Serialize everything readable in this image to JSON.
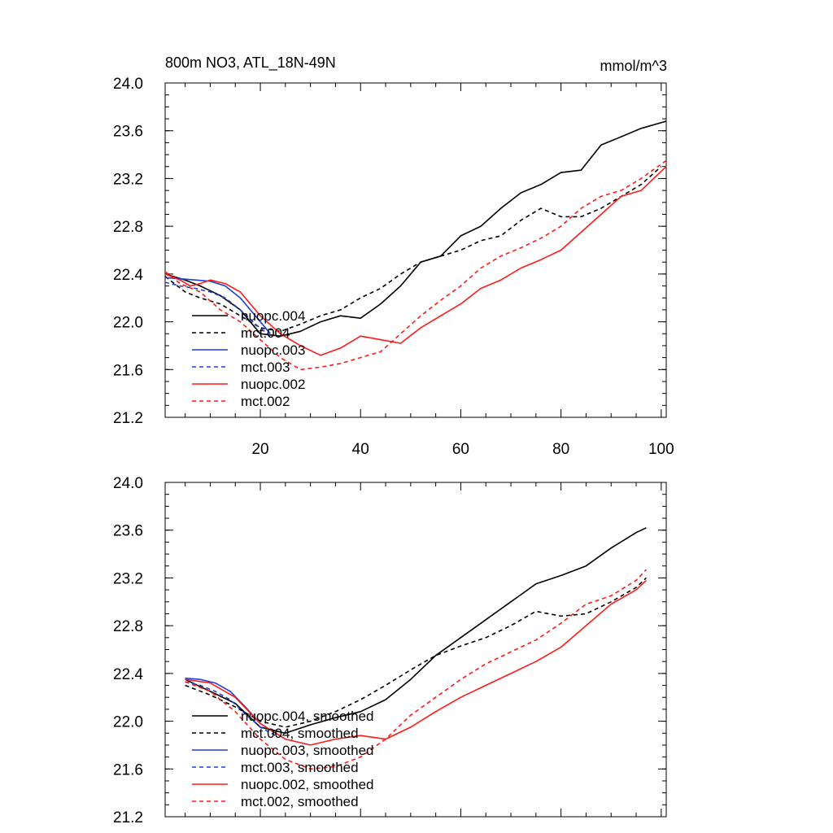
{
  "chart_data": [
    {
      "type": "line",
      "title": "800m NO3, ATL_18N-49N",
      "units": "mmol/m^3",
      "xlabel": "",
      "ylabel": "",
      "xlim": [
        1,
        101
      ],
      "ylim": [
        21.2,
        24.0
      ],
      "x_ticks": [
        20,
        40,
        60,
        80,
        100
      ],
      "x_tick_labels": [
        "20",
        "40",
        "60",
        "80",
        "100"
      ],
      "y_ticks": [
        21.2,
        21.6,
        22.0,
        22.4,
        22.8,
        23.2,
        23.6,
        24.0
      ],
      "y_tick_labels": [
        "21.2",
        "21.6",
        "22.0",
        "22.4",
        "22.8",
        "23.2",
        "23.6",
        "24.0"
      ],
      "legend_position": "bottom-left",
      "series": [
        {
          "name": "nuopc.004",
          "color": "#000000",
          "dashed": false,
          "x": [
            1,
            5,
            8,
            12,
            16,
            20,
            24,
            28,
            32,
            36,
            40,
            44,
            48,
            52,
            56,
            60,
            64,
            68,
            72,
            76,
            80,
            84,
            88,
            92,
            96,
            101
          ],
          "y": [
            22.4,
            22.35,
            22.3,
            22.22,
            22.1,
            21.9,
            21.88,
            21.92,
            22.0,
            22.05,
            22.03,
            22.15,
            22.3,
            22.5,
            22.55,
            22.72,
            22.8,
            22.95,
            23.08,
            23.15,
            23.25,
            23.27,
            23.48,
            23.55,
            23.62,
            23.68
          ]
        },
        {
          "name": "mct.004",
          "color": "#000000",
          "dashed": true,
          "x": [
            1,
            5,
            8,
            12,
            16,
            20,
            24,
            28,
            32,
            36,
            40,
            44,
            48,
            52,
            56,
            60,
            64,
            68,
            72,
            76,
            80,
            84,
            88,
            92,
            96,
            100
          ],
          "y": [
            22.38,
            22.25,
            22.2,
            22.15,
            22.05,
            21.95,
            21.92,
            21.98,
            22.05,
            22.1,
            22.2,
            22.28,
            22.4,
            22.5,
            22.55,
            22.6,
            22.68,
            22.72,
            22.85,
            22.95,
            22.88,
            22.88,
            22.95,
            23.05,
            23.15,
            23.3
          ]
        },
        {
          "name": "nuopc.003",
          "color": "#1f3fd8",
          "dashed": false,
          "x": [
            1,
            4,
            7,
            10,
            13,
            16,
            19,
            22
          ],
          "y": [
            22.37,
            22.36,
            22.35,
            22.34,
            22.3,
            22.2,
            22.05,
            21.9
          ]
        },
        {
          "name": "mct.003",
          "color": "#1f3fd8",
          "dashed": true,
          "x": [
            1,
            4,
            7,
            10,
            13,
            16,
            19,
            22
          ],
          "y": [
            22.33,
            22.3,
            22.28,
            22.25,
            22.2,
            22.1,
            21.98,
            21.88
          ]
        },
        {
          "name": "nuopc.002",
          "color": "#ff1a1a",
          "dashed": false,
          "x": [
            1,
            4,
            6,
            8,
            10,
            13,
            16,
            20,
            24,
            28,
            32,
            36,
            40,
            44,
            48,
            52,
            56,
            60,
            64,
            68,
            72,
            76,
            80,
            84,
            88,
            92,
            96,
            101
          ],
          "y": [
            22.4,
            22.35,
            22.3,
            22.32,
            22.35,
            22.32,
            22.25,
            22.05,
            21.9,
            21.8,
            21.72,
            21.78,
            21.88,
            21.85,
            21.82,
            21.95,
            22.05,
            22.15,
            22.28,
            22.35,
            22.45,
            22.52,
            22.6,
            22.75,
            22.9,
            23.05,
            23.1,
            23.3
          ]
        },
        {
          "name": "mct.002",
          "color": "#ff1a1a",
          "dashed": true,
          "x": [
            1,
            4,
            8,
            12,
            16,
            20,
            24,
            28,
            32,
            36,
            40,
            44,
            48,
            52,
            56,
            60,
            64,
            68,
            72,
            76,
            80,
            84,
            88,
            92,
            96,
            101
          ],
          "y": [
            22.42,
            22.32,
            22.25,
            22.1,
            22.0,
            21.85,
            21.7,
            21.6,
            21.62,
            21.65,
            21.7,
            21.75,
            21.9,
            22.05,
            22.18,
            22.3,
            22.45,
            22.55,
            22.62,
            22.7,
            22.8,
            22.95,
            23.05,
            23.1,
            23.2,
            23.35
          ]
        }
      ]
    },
    {
      "type": "line",
      "title": "",
      "units": "",
      "xlabel": "",
      "ylabel": "",
      "xlim": [
        1,
        101
      ],
      "ylim": [
        21.2,
        24.0
      ],
      "x_ticks": [
        20,
        40,
        60,
        80,
        100
      ],
      "x_tick_labels": [],
      "y_ticks": [
        21.2,
        21.6,
        22.0,
        22.4,
        22.8,
        23.2,
        23.6,
        24.0
      ],
      "y_tick_labels": [
        "21.2",
        "21.6",
        "22.0",
        "22.4",
        "22.8",
        "23.2",
        "23.6",
        "24.0"
      ],
      "legend_position": "bottom-left",
      "series": [
        {
          "name": "nuopc.004, smoothed",
          "color": "#000000",
          "dashed": false,
          "x": [
            5,
            10,
            15,
            20,
            25,
            30,
            35,
            40,
            45,
            50,
            55,
            60,
            65,
            70,
            75,
            80,
            85,
            90,
            95,
            97
          ],
          "y": [
            22.35,
            22.25,
            22.15,
            21.95,
            21.9,
            21.97,
            22.03,
            22.08,
            22.18,
            22.35,
            22.55,
            22.7,
            22.85,
            23.0,
            23.15,
            23.22,
            23.3,
            23.45,
            23.58,
            23.62
          ]
        },
        {
          "name": "mct.004, smoothed",
          "color": "#000000",
          "dashed": true,
          "x": [
            5,
            10,
            15,
            20,
            25,
            30,
            35,
            40,
            45,
            50,
            55,
            60,
            65,
            70,
            75,
            80,
            85,
            90,
            95,
            97
          ],
          "y": [
            22.3,
            22.22,
            22.12,
            22.0,
            21.95,
            22.0,
            22.08,
            22.18,
            22.3,
            22.43,
            22.55,
            22.63,
            22.7,
            22.8,
            22.92,
            22.88,
            22.9,
            23.0,
            23.12,
            23.2
          ]
        },
        {
          "name": "nuopc.003, smoothed",
          "color": "#1f3fd8",
          "dashed": false,
          "x": [
            5,
            8,
            11,
            14,
            17,
            20,
            23
          ],
          "y": [
            22.36,
            22.35,
            22.32,
            22.25,
            22.12,
            21.98,
            21.9
          ]
        },
        {
          "name": "mct.003, smoothed",
          "color": "#1f3fd8",
          "dashed": true,
          "x": [
            5,
            8,
            11,
            14,
            17,
            20,
            23
          ],
          "y": [
            22.33,
            22.3,
            22.25,
            22.18,
            22.06,
            21.95,
            21.88
          ]
        },
        {
          "name": "nuopc.002, smoothed",
          "color": "#ff1a1a",
          "dashed": false,
          "x": [
            5,
            10,
            15,
            20,
            25,
            30,
            35,
            40,
            45,
            50,
            55,
            60,
            65,
            70,
            75,
            80,
            85,
            90,
            95,
            97
          ],
          "y": [
            22.35,
            22.32,
            22.2,
            21.98,
            21.85,
            21.8,
            21.85,
            21.88,
            21.85,
            21.95,
            22.08,
            22.2,
            22.3,
            22.4,
            22.5,
            22.62,
            22.8,
            22.98,
            23.1,
            23.18
          ]
        },
        {
          "name": "mct.002, smoothed",
          "color": "#ff1a1a",
          "dashed": true,
          "x": [
            5,
            10,
            15,
            20,
            25,
            30,
            35,
            40,
            45,
            50,
            55,
            60,
            65,
            70,
            75,
            80,
            85,
            90,
            95,
            97
          ],
          "y": [
            22.33,
            22.25,
            22.08,
            21.85,
            21.68,
            21.6,
            21.62,
            21.7,
            21.85,
            22.05,
            22.2,
            22.35,
            22.48,
            22.58,
            22.68,
            22.82,
            22.98,
            23.05,
            23.18,
            23.27
          ]
        }
      ]
    }
  ]
}
